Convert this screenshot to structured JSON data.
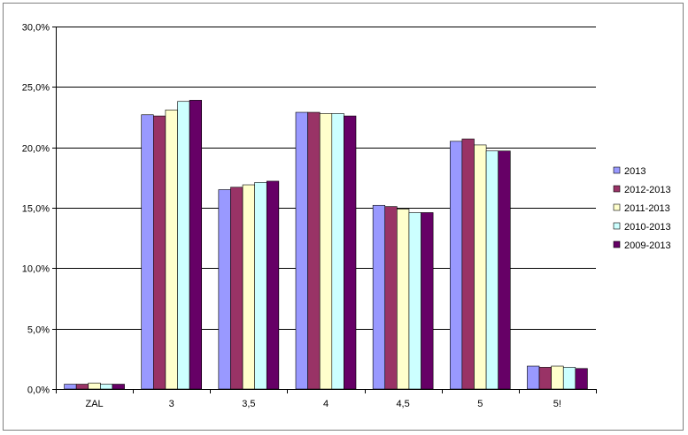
{
  "chart_data": {
    "type": "bar",
    "title": "",
    "xlabel": "",
    "ylabel": "",
    "categories": [
      "ZAL",
      "3",
      "3,5",
      "4",
      "4,5",
      "5",
      "5!"
    ],
    "y_ticks": [
      "0,0%",
      "5,0%",
      "10,0%",
      "15,0%",
      "20,0%",
      "25,0%",
      "30,0%"
    ],
    "ylim": [
      0,
      30
    ],
    "y_unit": "%",
    "grid": true,
    "legend_position": "right",
    "series": [
      {
        "name": "2013",
        "color": "#9999ff",
        "values": [
          0.4,
          22.7,
          16.5,
          22.9,
          15.2,
          20.5,
          1.9
        ]
      },
      {
        "name": "2012-2013",
        "color": "#993366",
        "values": [
          0.4,
          22.6,
          16.7,
          22.9,
          15.1,
          20.7,
          1.8
        ]
      },
      {
        "name": "2011-2013",
        "color": "#ffffcc",
        "values": [
          0.5,
          23.1,
          16.9,
          22.8,
          14.9,
          20.2,
          1.9
        ]
      },
      {
        "name": "2010-2013",
        "color": "#ccffff",
        "values": [
          0.4,
          23.8,
          17.1,
          22.8,
          14.6,
          19.7,
          1.8
        ]
      },
      {
        "name": "2009-2013",
        "color": "#660066",
        "values": [
          0.4,
          23.9,
          17.2,
          22.6,
          14.6,
          19.7,
          1.7
        ]
      }
    ]
  }
}
